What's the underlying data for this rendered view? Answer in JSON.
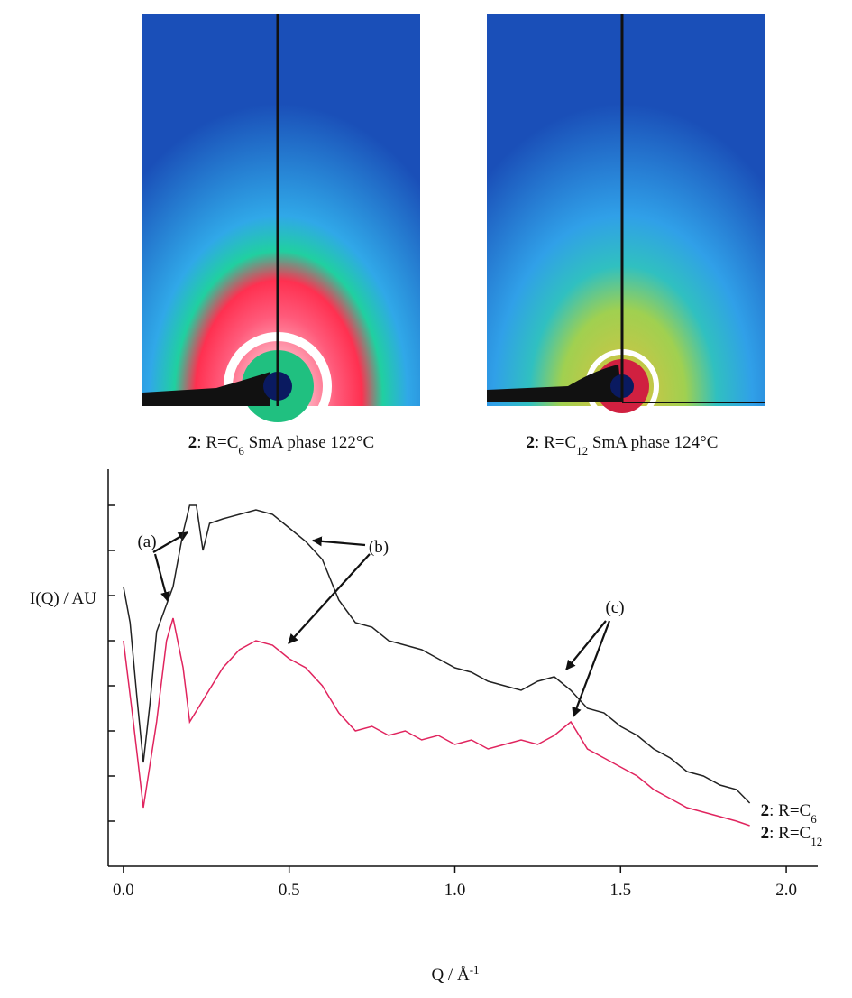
{
  "images": [
    {
      "caption": "2: R=C6 SmA phase 122°C"
    },
    {
      "caption": "2: R=C12 SmA phase 124°C"
    }
  ],
  "chart_data": {
    "type": "line",
    "xlabel": "Q / Å-1",
    "ylabel": "I(Q) / AU",
    "xlim": [
      -0.046,
      2.095
    ],
    "ylim": [
      0,
      9
    ],
    "xticks": [
      {
        "value": 0,
        "label": "0.0"
      },
      0.5,
      {
        "value": 1,
        "label": "1.0"
      },
      1.5,
      {
        "value": 2,
        "label": "2.0"
      }
    ],
    "yticks": [
      1,
      2,
      3,
      4,
      5,
      6,
      7,
      8
    ],
    "annotations": [
      "(a)",
      "(b)",
      "(c)"
    ],
    "series": [
      {
        "name": "2: R=C6",
        "color": "#222222",
        "x": [
          0,
          0.02,
          0.04,
          0.06,
          0.08,
          0.1,
          0.12,
          0.15,
          0.18,
          0.2,
          0.22,
          0.24,
          0.26,
          0.3,
          0.35,
          0.4,
          0.45,
          0.5,
          0.55,
          0.6,
          0.65,
          0.7,
          0.75,
          0.8,
          0.85,
          0.9,
          0.95,
          1.0,
          1.05,
          1.1,
          1.15,
          1.2,
          1.25,
          1.3,
          1.35,
          1.4,
          1.45,
          1.5,
          1.55,
          1.6,
          1.65,
          1.7,
          1.75,
          1.8,
          1.85,
          1.89
        ],
        "values": [
          6.2,
          5.4,
          3.8,
          2.3,
          3.6,
          5.2,
          5.6,
          6.2,
          7.4,
          8.0,
          8.0,
          7.0,
          7.6,
          7.7,
          7.8,
          7.9,
          7.8,
          7.5,
          7.2,
          6.8,
          5.9,
          5.4,
          5.3,
          5.0,
          4.9,
          4.8,
          4.6,
          4.4,
          4.3,
          4.1,
          4.0,
          3.9,
          4.1,
          4.2,
          3.9,
          3.5,
          3.4,
          3.1,
          2.9,
          2.6,
          2.4,
          2.1,
          2.0,
          1.8,
          1.7,
          1.4
        ]
      },
      {
        "name": "2: R=C12",
        "color": "#e0245e",
        "x": [
          0,
          0.03,
          0.06,
          0.1,
          0.13,
          0.15,
          0.18,
          0.2,
          0.25,
          0.3,
          0.35,
          0.4,
          0.45,
          0.5,
          0.55,
          0.6,
          0.65,
          0.7,
          0.75,
          0.8,
          0.85,
          0.9,
          0.95,
          1.0,
          1.05,
          1.1,
          1.15,
          1.2,
          1.25,
          1.3,
          1.35,
          1.4,
          1.45,
          1.5,
          1.55,
          1.6,
          1.65,
          1.7,
          1.75,
          1.8,
          1.85,
          1.89
        ],
        "values": [
          5.0,
          3.2,
          1.3,
          3.2,
          5.0,
          5.5,
          4.4,
          3.2,
          3.8,
          4.4,
          4.8,
          5.0,
          4.9,
          4.6,
          4.4,
          4.0,
          3.4,
          3.0,
          3.1,
          2.9,
          3.0,
          2.8,
          2.9,
          2.7,
          2.8,
          2.6,
          2.7,
          2.8,
          2.7,
          2.9,
          3.2,
          2.6,
          2.4,
          2.2,
          2.0,
          1.7,
          1.5,
          1.3,
          1.2,
          1.1,
          1.0,
          0.9
        ]
      }
    ]
  }
}
